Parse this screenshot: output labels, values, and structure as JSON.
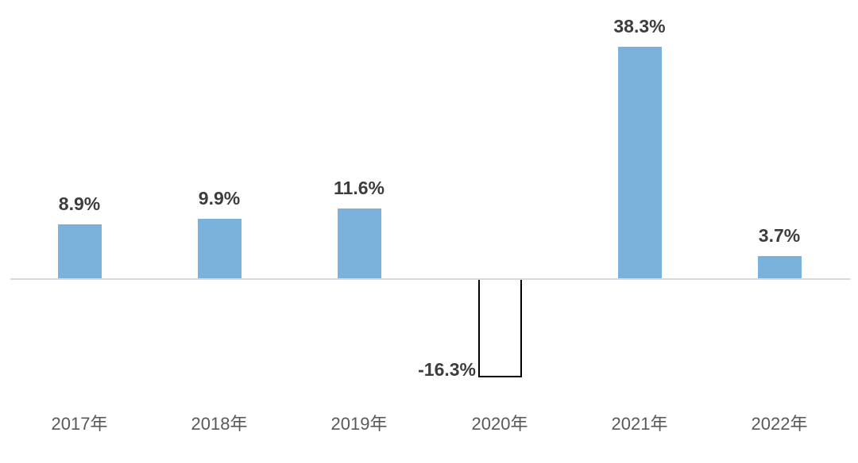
{
  "chart_data": {
    "type": "bar",
    "categories": [
      "2017年",
      "2018年",
      "2019年",
      "2020年",
      "2021年",
      "2022年"
    ],
    "values": [
      8.9,
      9.9,
      11.6,
      -16.3,
      38.3,
      3.7
    ],
    "data_labels": [
      "8.9%",
      "9.9%",
      "11.6%",
      "-16.3%",
      "38.3%",
      "3.7%"
    ],
    "unit": "%",
    "ylim": [
      -20,
      45
    ],
    "baseline": 0,
    "grid": false,
    "legend_position": "none",
    "xlabel": "",
    "ylabel": "",
    "colors": {
      "positive_bar": "#7AB2DB",
      "negative_bar_fill": "#FFFFFF",
      "negative_bar_border": "#000000",
      "axis_line": "#D9D9D9",
      "value_label_text": "#3D3D3D",
      "axis_label_text": "#595959",
      "background": "#FFFFFF"
    }
  }
}
